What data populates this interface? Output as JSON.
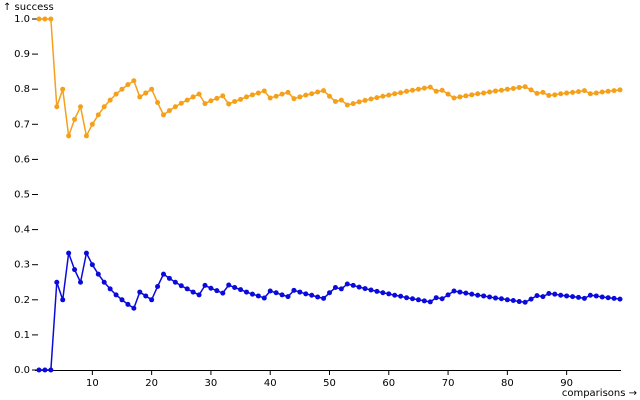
{
  "chart_data": {
    "type": "line",
    "y_label": "↑ success",
    "x_label": "comparisons →",
    "x": [
      1,
      2,
      3,
      4,
      5,
      6,
      7,
      8,
      9,
      10,
      11,
      12,
      13,
      14,
      15,
      16,
      17,
      18,
      19,
      20,
      21,
      22,
      23,
      24,
      25,
      26,
      27,
      28,
      29,
      30,
      31,
      32,
      33,
      34,
      35,
      36,
      37,
      38,
      39,
      40,
      41,
      42,
      43,
      44,
      45,
      46,
      47,
      48,
      49,
      50,
      51,
      52,
      53,
      54,
      55,
      56,
      57,
      58,
      59,
      60,
      61,
      62,
      63,
      64,
      65,
      66,
      67,
      68,
      69,
      70,
      71,
      72,
      73,
      74,
      75,
      76,
      77,
      78,
      79,
      80,
      81,
      82,
      83,
      84,
      85,
      86,
      87,
      88,
      89,
      90,
      91,
      92,
      93,
      94,
      95,
      96,
      97,
      98,
      99
    ],
    "series": [
      {
        "color": "#f5a01a",
        "values": [
          1,
          1,
          1,
          0.75,
          0.8,
          0.667,
          0.714,
          0.75,
          0.667,
          0.7,
          0.727,
          0.75,
          0.769,
          0.786,
          0.8,
          0.813,
          0.824,
          0.778,
          0.789,
          0.8,
          0.762,
          0.727,
          0.739,
          0.75,
          0.76,
          0.769,
          0.778,
          0.786,
          0.759,
          0.767,
          0.774,
          0.781,
          0.758,
          0.765,
          0.771,
          0.778,
          0.784,
          0.789,
          0.795,
          0.775,
          0.78,
          0.786,
          0.791,
          0.773,
          0.778,
          0.783,
          0.787,
          0.792,
          0.796,
          0.78,
          0.765,
          0.769,
          0.755,
          0.759,
          0.764,
          0.768,
          0.772,
          0.776,
          0.78,
          0.783,
          0.787,
          0.79,
          0.794,
          0.797,
          0.8,
          0.803,
          0.806,
          0.794,
          0.797,
          0.786,
          0.775,
          0.778,
          0.781,
          0.784,
          0.787,
          0.789,
          0.792,
          0.795,
          0.797,
          0.8,
          0.802,
          0.805,
          0.807,
          0.798,
          0.788,
          0.791,
          0.782,
          0.784,
          0.787,
          0.789,
          0.791,
          0.793,
          0.796,
          0.787,
          0.789,
          0.792,
          0.794,
          0.796,
          0.798
        ]
      },
      {
        "color": "#0a0adc",
        "values": [
          0,
          0,
          0,
          0.25,
          0.2,
          0.333,
          0.286,
          0.25,
          0.333,
          0.3,
          0.273,
          0.25,
          0.231,
          0.214,
          0.2,
          0.187,
          0.176,
          0.222,
          0.211,
          0.2,
          0.238,
          0.273,
          0.261,
          0.25,
          0.24,
          0.231,
          0.222,
          0.214,
          0.241,
          0.233,
          0.226,
          0.219,
          0.242,
          0.235,
          0.229,
          0.222,
          0.216,
          0.211,
          0.205,
          0.225,
          0.22,
          0.214,
          0.209,
          0.227,
          0.222,
          0.217,
          0.213,
          0.208,
          0.204,
          0.22,
          0.235,
          0.231,
          0.245,
          0.241,
          0.236,
          0.232,
          0.228,
          0.224,
          0.22,
          0.217,
          0.213,
          0.21,
          0.206,
          0.203,
          0.2,
          0.197,
          0.194,
          0.206,
          0.203,
          0.214,
          0.225,
          0.222,
          0.219,
          0.216,
          0.213,
          0.211,
          0.208,
          0.205,
          0.203,
          0.2,
          0.198,
          0.195,
          0.193,
          0.202,
          0.212,
          0.209,
          0.218,
          0.216,
          0.213,
          0.211,
          0.209,
          0.207,
          0.204,
          0.213,
          0.211,
          0.208,
          0.206,
          0.204,
          0.202
        ]
      }
    ],
    "xlim": [
      1,
      99
    ],
    "xticks": [
      10,
      20,
      30,
      40,
      50,
      60,
      70,
      80,
      90
    ],
    "ylim": [
      0,
      1
    ],
    "yticks": [
      {
        "value": 0,
        "label": "0.0"
      },
      0.1,
      0.2,
      0.3,
      0.4,
      0.5,
      0.6,
      0.7,
      0.8,
      0.9,
      {
        "value": 1,
        "label": "1.0"
      }
    ]
  }
}
